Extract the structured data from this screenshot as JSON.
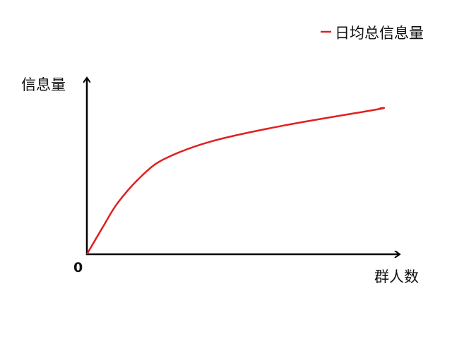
{
  "chart_data": {
    "type": "line",
    "title": "",
    "xlabel": "群人数",
    "ylabel": "信息量",
    "origin_label": "0",
    "xlim": [
      0,
      100
    ],
    "ylim": [
      0,
      100
    ],
    "grid": false,
    "legend_position": "top-right",
    "series": [
      {
        "name": "日均总信息量",
        "color": "#e02020",
        "x": [
          0,
          5,
          9.9,
          17.3,
          24.8,
          39.9,
          62.4,
          92.3,
          93.2
        ],
        "y": [
          0,
          15,
          29,
          43.7,
          53.6,
          63.5,
          72.2,
          81.3,
          82
        ]
      }
    ]
  }
}
